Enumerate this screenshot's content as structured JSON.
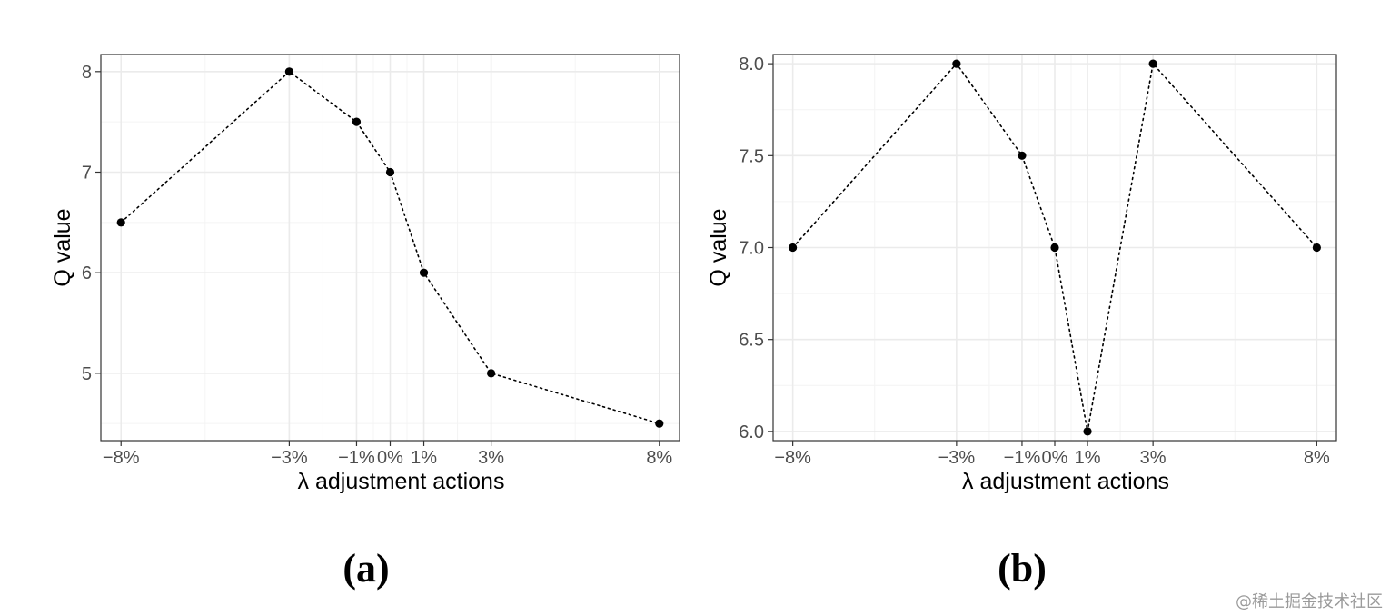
{
  "chart_data": [
    {
      "type": "line",
      "panel_label": "(a)",
      "xlabel": "λ adjustment actions",
      "ylabel": "Q value",
      "x": [
        -8,
        -3,
        -1,
        0,
        1,
        3,
        8
      ],
      "x_tick_labels": [
        "−8%",
        "−3%",
        "−1%",
        "0%",
        "1%",
        "3%",
        "8%"
      ],
      "values": [
        6.5,
        8,
        7.5,
        7,
        6,
        5,
        4.5
      ],
      "y_ticks": [
        5,
        6,
        7,
        8
      ],
      "y_tick_labels": [
        "5",
        "6",
        "7",
        "8"
      ],
      "ylim": [
        4.33,
        8.17
      ],
      "xlim": [
        -8.6,
        8.6
      ],
      "grid": true,
      "line_style": "dotted",
      "marker": "filled-circle",
      "legend": "none"
    },
    {
      "type": "line",
      "panel_label": "(b)",
      "xlabel": "λ adjustment actions",
      "ylabel": "Q value",
      "x": [
        -8,
        -3,
        -1,
        0,
        1,
        3,
        8
      ],
      "x_tick_labels": [
        "−8%",
        "−3%",
        "−1%",
        "0%",
        "1%",
        "3%",
        "8%"
      ],
      "values": [
        7,
        8,
        7.5,
        7,
        6,
        8,
        7
      ],
      "y_ticks": [
        6.0,
        6.5,
        7.0,
        7.5,
        8.0
      ],
      "y_tick_labels": [
        "6.0",
        "6.5",
        "7.0",
        "7.5",
        "8.0"
      ],
      "ylim": [
        5.95,
        8.05
      ],
      "xlim": [
        -8.6,
        8.6
      ],
      "grid": true,
      "line_style": "dotted",
      "marker": "filled-circle",
      "legend": "none"
    }
  ],
  "colors": {
    "grid_major": "#ebebeb",
    "grid_minor": "#f4f4f4",
    "panel_border": "#333333",
    "points": "#000000",
    "tick_text": "#4d4d4d"
  },
  "watermark": "@稀土掘金技术社区"
}
